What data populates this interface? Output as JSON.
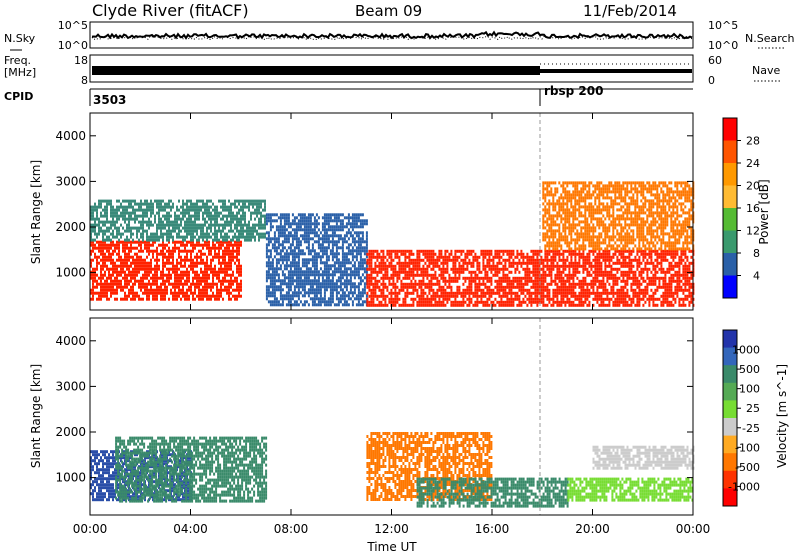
{
  "header": {
    "station": "Clyde River (fitACF)",
    "beam": "Beam 09",
    "date": "11/Feb/2014"
  },
  "strips": {
    "nsky": {
      "left_label": "N.Sky",
      "ticks_left": [
        "10^5",
        "10^0"
      ],
      "ticks_right": [
        "10^5",
        "10^0"
      ],
      "right_label": "N.Search"
    },
    "freq": {
      "left_label_1": "Freq.",
      "left_label_2": "[MHz]",
      "ticks_left": [
        "18",
        "8"
      ],
      "ticks_right": [
        "60",
        "0"
      ],
      "right_label": "Nave"
    },
    "cpid": {
      "label": "CPID",
      "segments": [
        {
          "start_hour": 0,
          "text": "3503"
        },
        {
          "start_hour": 18,
          "text": "rbsp 200"
        }
      ]
    }
  },
  "chart_data": [
    {
      "type": "heatmap",
      "panel": "power",
      "ylabel": "Slant Range [km]",
      "y_ticks": [
        "1000",
        "2000",
        "3000",
        "4000"
      ],
      "ylim": [
        180,
        4500
      ],
      "x_ticks": [
        "00:00",
        "04:00",
        "08:00",
        "12:00",
        "16:00",
        "20:00",
        "00:00"
      ],
      "xlim_hours": [
        0,
        24
      ],
      "colorbar": {
        "label": "Power [dB]",
        "ticks": [
          "28",
          "24",
          "20",
          "16",
          "12",
          "8",
          "4"
        ],
        "colors": [
          "#ff0000",
          "#ff5500",
          "#ff9900",
          "#ffbb33",
          "#55bb33",
          "#3a9a6e",
          "#2a60a8",
          "#0000ff"
        ]
      },
      "echo_bands": [
        {
          "hours": [
            0,
            6
          ],
          "range_km": [
            400,
            1700
          ],
          "color": "#ff2200"
        },
        {
          "hours": [
            0,
            7
          ],
          "range_km": [
            1700,
            2600
          ],
          "color": "#3a8a7a"
        },
        {
          "hours": [
            7,
            11
          ],
          "range_km": [
            300,
            2300
          ],
          "color": "#2a60a8"
        },
        {
          "hours": [
            11,
            24
          ],
          "range_km": [
            300,
            1500
          ],
          "color": "#ff2200"
        },
        {
          "hours": [
            18,
            24
          ],
          "range_km": [
            1500,
            3000
          ],
          "color": "#ff7700"
        }
      ]
    },
    {
      "type": "heatmap",
      "panel": "velocity",
      "ylabel": "Slant Range [km]",
      "y_ticks": [
        "1000",
        "2000",
        "3000",
        "4000"
      ],
      "ylim": [
        180,
        4500
      ],
      "x_ticks": [
        "00:00",
        "04:00",
        "08:00",
        "12:00",
        "16:00",
        "20:00",
        "00:00"
      ],
      "xlim_hours": [
        0,
        24
      ],
      "xlabel": "Time UT",
      "colorbar": {
        "label": "Velocity [m s^-1]",
        "ticks": [
          "1000",
          "500",
          "100",
          "25",
          "-25",
          "-100",
          "-500",
          "-1000"
        ],
        "colors": [
          "#2233aa",
          "#3366bb",
          "#3a8a6a",
          "#55aa55",
          "#77dd33",
          "#cccccc",
          "#ffaa22",
          "#ff7700",
          "#ff3300",
          "#ff0000"
        ]
      },
      "echo_bands": [
        {
          "hours": [
            0,
            4
          ],
          "range_km": [
            500,
            1600
          ],
          "color": "#2a4ea8"
        },
        {
          "hours": [
            1,
            7
          ],
          "range_km": [
            500,
            1900
          ],
          "color": "#3a8a6a"
        },
        {
          "hours": [
            11,
            16
          ],
          "range_km": [
            500,
            2000
          ],
          "color": "#ff7700"
        },
        {
          "hours": [
            13,
            19
          ],
          "range_km": [
            400,
            1000
          ],
          "color": "#3a8a6a"
        },
        {
          "hours": [
            19,
            24
          ],
          "range_km": [
            500,
            1000
          ],
          "color": "#77dd33"
        },
        {
          "hours": [
            20,
            24
          ],
          "range_km": [
            1200,
            1700
          ],
          "color": "#cccccc"
        }
      ]
    }
  ]
}
